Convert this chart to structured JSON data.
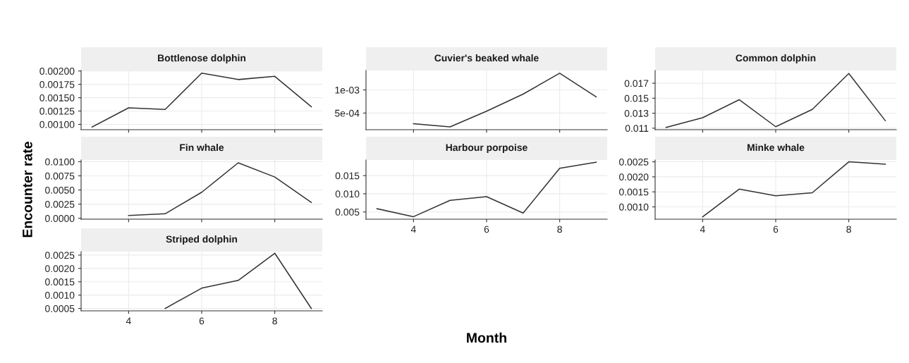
{
  "chart_data": [
    {
      "type": "line",
      "title": "Bottlenose dolphin",
      "x": [
        3,
        4,
        5,
        6,
        7,
        8,
        9
      ],
      "series": [
        {
          "color": "#333333",
          "values": [
            0.00095,
            0.00131,
            0.00128,
            0.00196,
            0.00184,
            0.0019,
            0.00133
          ]
        }
      ],
      "xlim": [
        2.7,
        9.3
      ],
      "xticks": [
        4,
        6,
        8
      ],
      "ylim": [
        0.0009,
        0.00201
      ],
      "yticks": [
        {
          "value": 0.001,
          "label": "0.00100"
        },
        {
          "value": 0.00125,
          "label": "0.00125"
        },
        {
          "value": 0.0015,
          "label": "0.00150"
        },
        {
          "value": 0.00175,
          "label": "0.00175"
        },
        {
          "value": 0.002,
          "label": "0.00200"
        }
      ],
      "tick_labels": "y",
      "grid": true
    },
    {
      "type": "line",
      "title": "Cuvier's beaked whale",
      "x": [
        4,
        5,
        6,
        7,
        8,
        9
      ],
      "series": [
        {
          "color": "#333333",
          "values": [
            0.00027,
            0.0002,
            0.00054,
            0.00091,
            0.00136,
            0.00085
          ]
        }
      ],
      "xlim": [
        2.7,
        9.3
      ],
      "xticks": [
        4,
        6,
        8
      ],
      "ylim": [
        0.00014,
        0.00142
      ],
      "yticks": [
        {
          "value": 0.0005,
          "label": "5e-04"
        },
        {
          "value": 0.001,
          "label": "1e-03"
        }
      ],
      "tick_labels": "y",
      "grid": true
    },
    {
      "type": "line",
      "title": "Common dolphin",
      "x": [
        3,
        4,
        5,
        6,
        7,
        8,
        9
      ],
      "series": [
        {
          "color": "#333333",
          "values": [
            0.0111,
            0.0124,
            0.0148,
            0.0112,
            0.0135,
            0.0183,
            0.012
          ]
        }
      ],
      "xlim": [
        2.7,
        9.3
      ],
      "xticks": [
        4,
        6,
        8
      ],
      "ylim": [
        0.0108,
        0.0187
      ],
      "yticks": [
        0.011,
        0.013,
        0.015,
        0.017
      ],
      "tick_labels": "y",
      "grid": true
    },
    {
      "type": "line",
      "title": "Fin whale",
      "ylabel": "Encounter rate",
      "x": [
        4,
        5,
        6,
        7,
        8,
        9
      ],
      "series": [
        {
          "color": "#333333",
          "values": [
            0.0005,
            0.0008,
            0.0046,
            0.0098,
            0.0073,
            0.0028
          ]
        }
      ],
      "xlim": [
        2.7,
        9.3
      ],
      "xticks": [
        4,
        6,
        8
      ],
      "ylim": [
        -0.00016,
        0.0103
      ],
      "yticks": [
        {
          "value": 0,
          "label": "0.0000"
        },
        {
          "value": 0.0025,
          "label": "0.0025"
        },
        {
          "value": 0.005,
          "label": "0.0050"
        },
        {
          "value": 0.0075,
          "label": "0.0075"
        },
        {
          "value": 0.01,
          "label": "0.0100"
        }
      ],
      "tick_labels": "y",
      "grid": true
    },
    {
      "type": "line",
      "title": "Harbour porpoise",
      "xlabel": "Month",
      "x": [
        3,
        4,
        5,
        6,
        7,
        8,
        9
      ],
      "series": [
        {
          "color": "#333333",
          "values": [
            0.0059,
            0.0037,
            0.0082,
            0.0092,
            0.0047,
            0.017,
            0.0187
          ]
        }
      ],
      "xlim": [
        2.7,
        9.3
      ],
      "xticks": [
        4,
        6,
        8
      ],
      "ylim": [
        0.003,
        0.0193
      ],
      "yticks": [
        0.005,
        {
          "value": 0.01,
          "label": "0.010"
        },
        0.015
      ],
      "grid": true
    },
    {
      "type": "line",
      "title": "Minke whale",
      "x": [
        4,
        5,
        6,
        7,
        8,
        9
      ],
      "series": [
        {
          "color": "#333333",
          "values": [
            0.00067,
            0.00159,
            0.00137,
            0.00147,
            0.0025,
            0.00242
          ]
        }
      ],
      "xlim": [
        2.7,
        9.3
      ],
      "xticks": [
        4,
        6,
        8
      ],
      "ylim": [
        0.00059,
        0.00256
      ],
      "yticks": [
        {
          "value": 0.001,
          "label": "0.0010"
        },
        {
          "value": 0.0015,
          "label": "0.0015"
        },
        {
          "value": 0.002,
          "label": "0.0020"
        },
        0.0025
      ],
      "grid": true
    },
    {
      "type": "line",
      "title": "Striped dolphin",
      "x": [
        5,
        6,
        7,
        8,
        9
      ],
      "series": [
        {
          "color": "#333333",
          "values": [
            0.0005,
            0.00126,
            0.00155,
            0.00257,
            0.0005
          ]
        }
      ],
      "xlim": [
        2.7,
        9.3
      ],
      "xticks": [
        4,
        6,
        8
      ],
      "ylim": [
        0.00041,
        0.00263
      ],
      "yticks": [
        0.0005,
        {
          "value": 0.001,
          "label": "0.0010"
        },
        0.0015,
        {
          "value": 0.002,
          "label": "0.0020"
        },
        0.0025
      ],
      "grid": true
    }
  ]
}
